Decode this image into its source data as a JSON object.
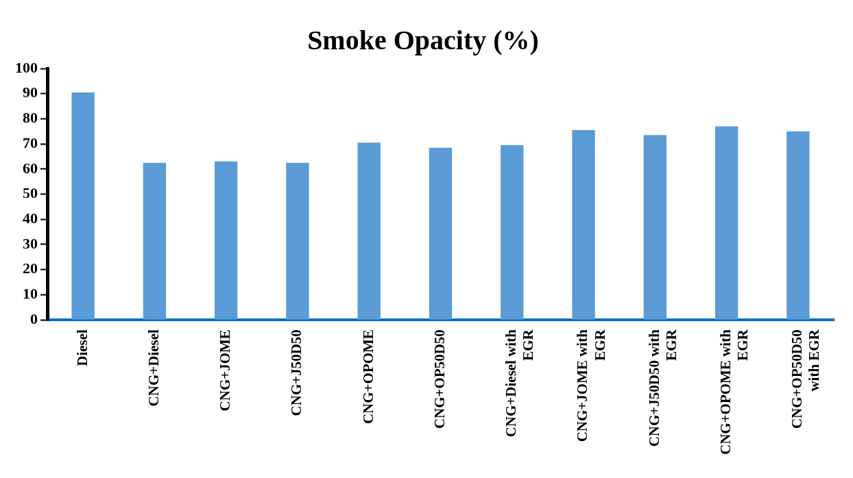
{
  "chart_data": {
    "type": "bar",
    "title": "Smoke Opacity (%)",
    "categories": [
      "Diesel",
      "CNG+Diesel",
      "CNG+JOME",
      "CNG+J50D50",
      "CNG+OPOME",
      "CNG+OP50D50",
      "CNG+Diesel with EGR",
      "CNG+JOME with EGR",
      "CNG+J50D50 with EGR",
      "CNG+OPOME with EGR",
      "CNG+OP50D50 with EGR"
    ],
    "values": [
      90.5,
      62.5,
      63,
      62.5,
      70.5,
      68.5,
      69.5,
      75.5,
      73.5,
      77,
      75
    ],
    "color": "#5b9bd5",
    "ylim": [
      0,
      100
    ],
    "yticks": [
      0,
      10,
      20,
      30,
      40,
      50,
      60,
      70,
      80,
      90,
      100
    ],
    "grid": false,
    "legend": false
  }
}
